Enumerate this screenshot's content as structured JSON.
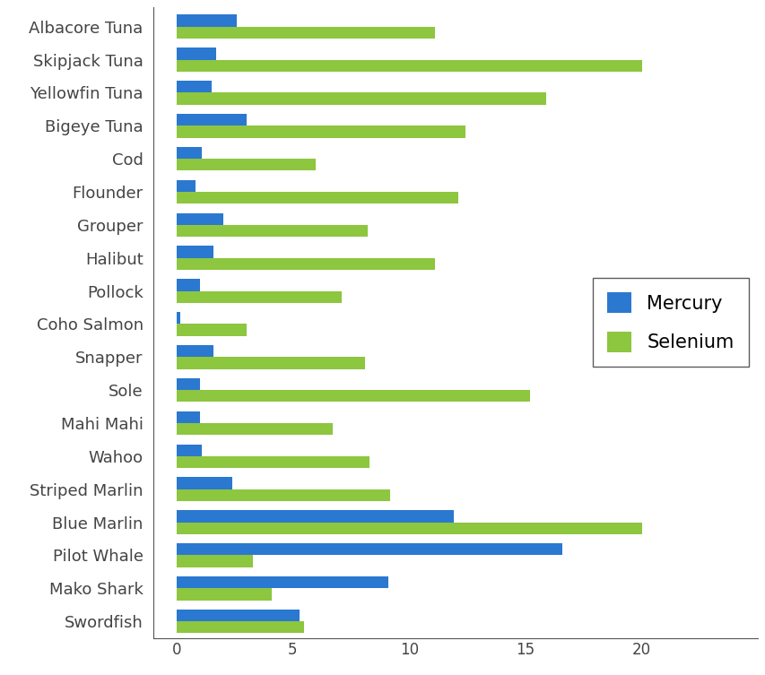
{
  "chart_data": {
    "type": "bar",
    "orientation": "horizontal",
    "categories": [
      "Albacore Tuna",
      "Skipjack Tuna",
      "Yellowfin Tuna",
      "Bigeye Tuna",
      "Cod",
      "Flounder",
      "Grouper",
      "Halibut",
      "Pollock",
      "Coho Salmon",
      "Snapper",
      "Sole",
      "Mahi Mahi",
      "Wahoo",
      "Striped Marlin",
      "Blue Marlin",
      "Pilot Whale",
      "Mako Shark",
      "Swordfish"
    ],
    "series": [
      {
        "name": "Mercury",
        "color": "#2b78d0",
        "values": [
          2.6,
          1.7,
          1.5,
          3.0,
          1.1,
          0.8,
          2.0,
          1.6,
          1.0,
          0.15,
          1.6,
          1.0,
          1.0,
          1.1,
          2.4,
          11.9,
          16.6,
          9.1,
          5.3
        ]
      },
      {
        "name": "Selenium",
        "color": "#8dc63f",
        "values": [
          11.1,
          20.0,
          15.9,
          12.4,
          6.0,
          12.1,
          8.2,
          11.1,
          7.1,
          3.0,
          8.1,
          15.2,
          6.7,
          8.3,
          9.2,
          20.0,
          3.3,
          4.1,
          5.5
        ]
      }
    ],
    "xlim": [
      -1,
      25
    ],
    "xticks": [
      0,
      5,
      10,
      15,
      20
    ],
    "legend": "center right",
    "grid": false
  }
}
